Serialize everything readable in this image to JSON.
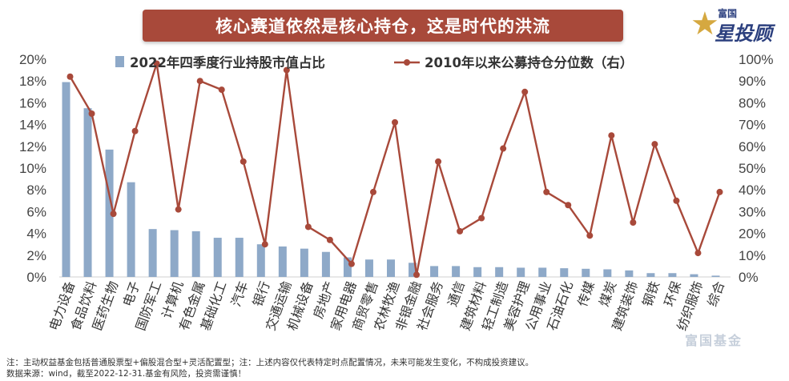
{
  "title": "核心赛道依然是核心持仓，这是时代的洪流",
  "brand": {
    "small_text": "富国",
    "big_text": "星投顾"
  },
  "watermark": "富国基金",
  "footnote": {
    "line1": "注：主动权益基金包括普通股票型+偏股混合型+灵活配置型；注：上述内容仅代表特定时点配置情况，未来可能发生变化，不构成投资建议。",
    "line2": "数据来源：wind，截至2022-12-31.基金有风险，投资需谨慎！"
  },
  "colors": {
    "title_bg": "#a8493a",
    "bar": "#8ea9c8",
    "line": "#a8493a"
  },
  "chart_data": {
    "type": "bar",
    "categories": [
      "电力设备",
      "食品饮料",
      "医药生物",
      "电子",
      "国防军工",
      "计算机",
      "有色金属",
      "基础化工",
      "汽车",
      "银行",
      "交通运输",
      "机械设备",
      "房地产",
      "家用电器",
      "商贸零售",
      "农林牧渔",
      "非银金融",
      "社会服务",
      "通信",
      "建筑材料",
      "轻工制造",
      "美容护理",
      "公用事业",
      "石油石化",
      "传媒",
      "煤炭",
      "建筑装饰",
      "钢铁",
      "环保",
      "纺织服饰",
      "综合"
    ],
    "series": [
      {
        "name": "2022年四季度行业持股市值占比",
        "type": "bar",
        "axis": "left",
        "values": [
          17.9,
          15.5,
          11.7,
          8.7,
          4.4,
          4.3,
          4.2,
          3.6,
          3.6,
          3.0,
          2.8,
          2.6,
          2.3,
          1.8,
          1.6,
          1.6,
          1.3,
          1.0,
          1.0,
          0.9,
          0.9,
          0.85,
          0.85,
          0.8,
          0.75,
          0.7,
          0.6,
          0.35,
          0.35,
          0.25,
          0.12
        ]
      },
      {
        "name": "2010年以来公募持仓分位数（右）",
        "type": "line",
        "axis": "right",
        "values": [
          92,
          75,
          29,
          67,
          98,
          31,
          90,
          86,
          53,
          15,
          95,
          23,
          17,
          6,
          39,
          71,
          1,
          53,
          21,
          27,
          59,
          85,
          39,
          33,
          19,
          65,
          25,
          61,
          35,
          11,
          39
        ]
      }
    ],
    "y_left": {
      "min": 0,
      "max": 20,
      "step": 2,
      "tick_labels": [
        "0%",
        "2%",
        "4%",
        "6%",
        "8%",
        "10%",
        "12%",
        "14%",
        "16%",
        "18%",
        "20%"
      ]
    },
    "y_right": {
      "min": 0,
      "max": 100,
      "step": 10,
      "tick_labels": [
        "0%",
        "10%",
        "20%",
        "30%",
        "40%",
        "50%",
        "60%",
        "70%",
        "80%",
        "90%",
        "100%"
      ]
    },
    "legend_position": "top",
    "grid": false
  }
}
